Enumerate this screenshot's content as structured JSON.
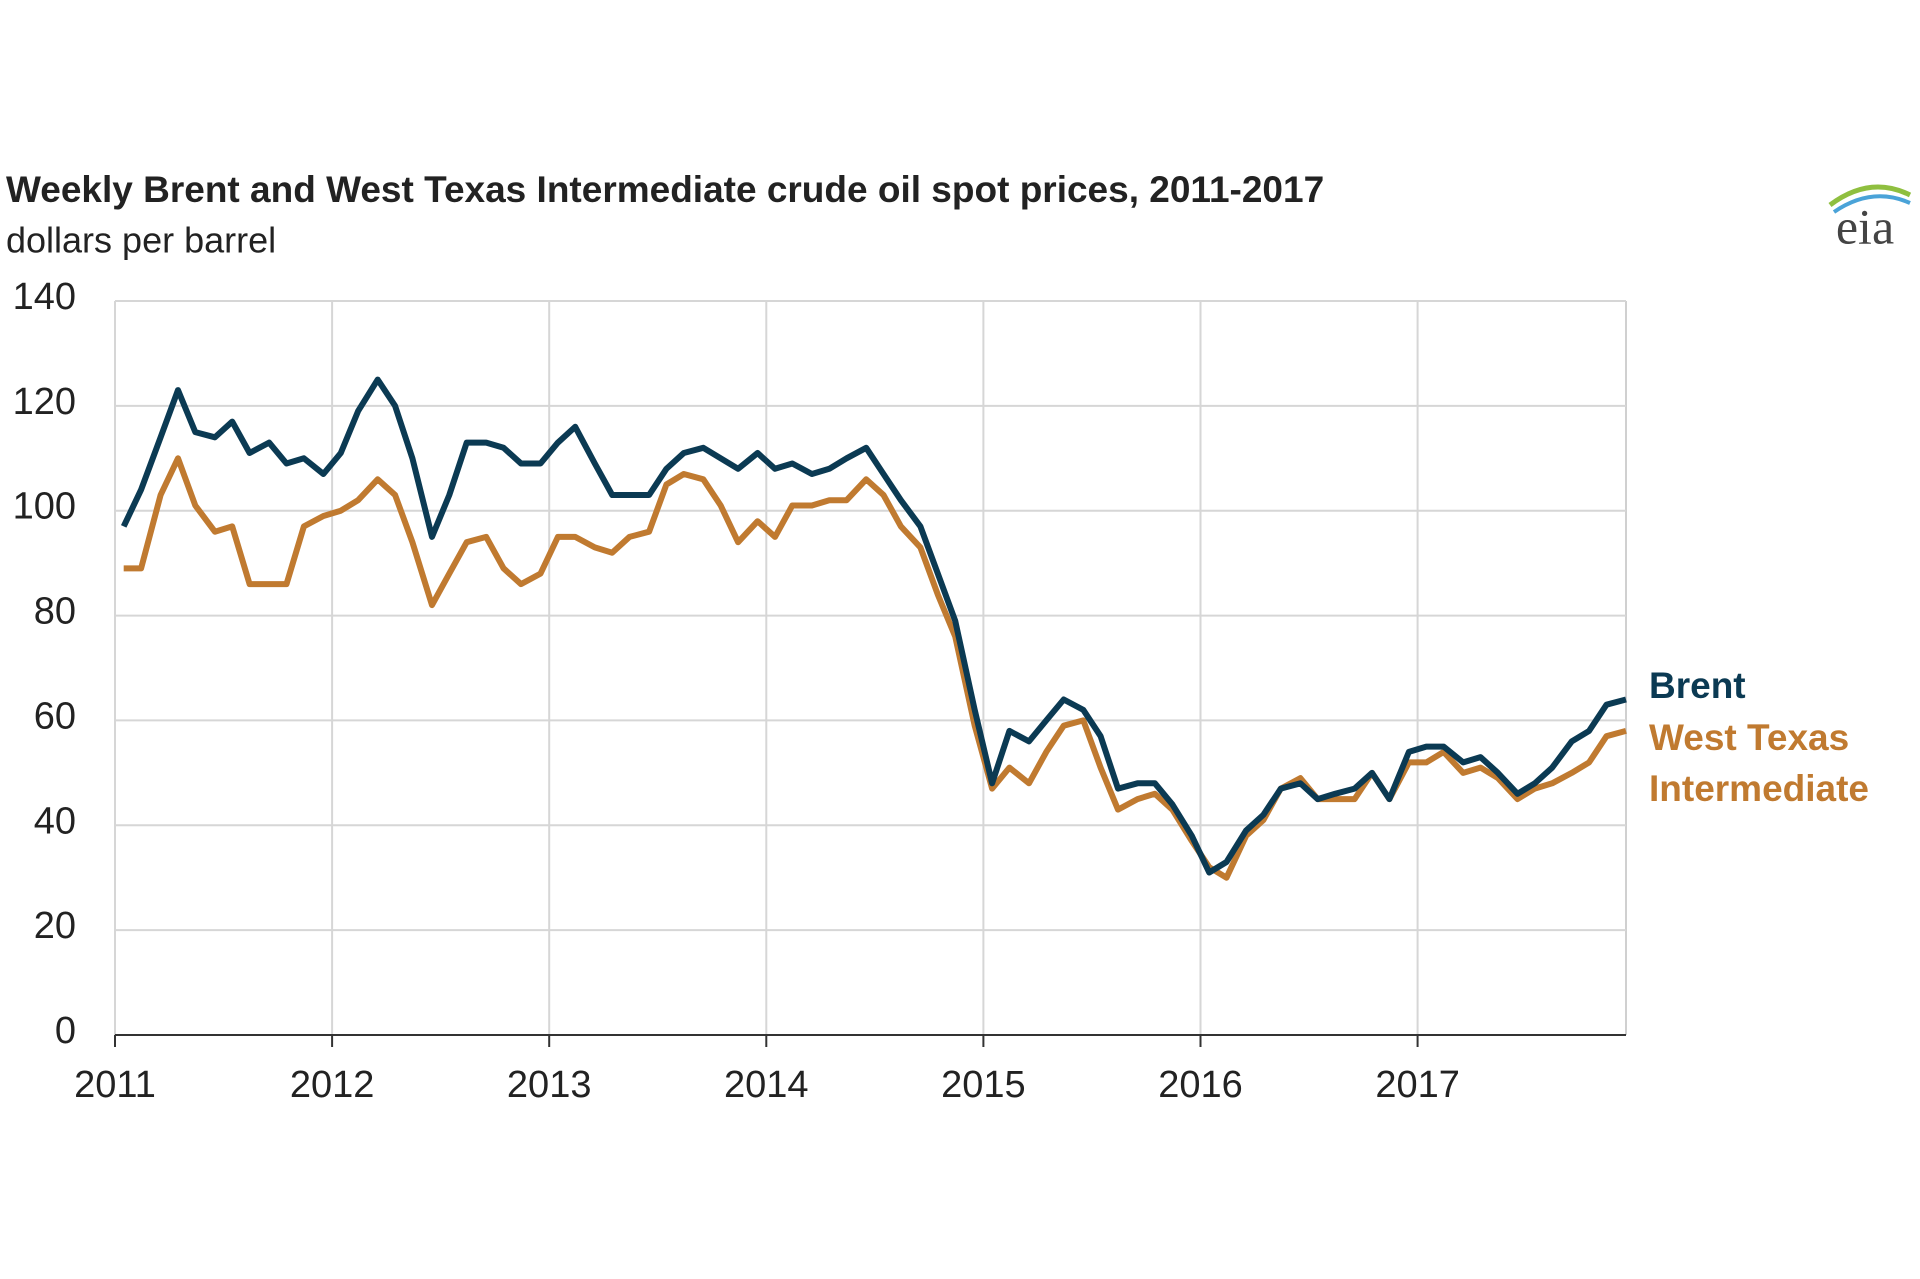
{
  "chart_data": {
    "type": "line",
    "title": "Weekly Brent and West Texas Intermediate crude oil spot prices, 2011-2017",
    "subtitle": "dollars per barrel",
    "logo": "eia",
    "x": [
      2011.04,
      2011.12,
      2011.21,
      2011.29,
      2011.37,
      2011.46,
      2011.54,
      2011.62,
      2011.71,
      2011.79,
      2011.87,
      2011.96,
      2012.04,
      2012.12,
      2012.21,
      2012.29,
      2012.37,
      2012.46,
      2012.54,
      2012.62,
      2012.71,
      2012.79,
      2012.87,
      2012.96,
      2013.04,
      2013.12,
      2013.21,
      2013.29,
      2013.37,
      2013.46,
      2013.54,
      2013.62,
      2013.71,
      2013.79,
      2013.87,
      2013.96,
      2014.04,
      2014.12,
      2014.21,
      2014.29,
      2014.37,
      2014.46,
      2014.54,
      2014.62,
      2014.71,
      2014.79,
      2014.87,
      2014.96,
      2015.04,
      2015.12,
      2015.21,
      2015.29,
      2015.37,
      2015.46,
      2015.54,
      2015.62,
      2015.71,
      2015.79,
      2015.87,
      2015.96,
      2016.04,
      2016.12,
      2016.21,
      2016.29,
      2016.37,
      2016.46,
      2016.54,
      2016.62,
      2016.71,
      2016.79,
      2016.87,
      2016.96,
      2017.04,
      2017.12,
      2017.21,
      2017.29,
      2017.37,
      2017.46,
      2017.54,
      2017.62,
      2017.71,
      2017.79,
      2017.87,
      2017.96
    ],
    "series": [
      {
        "name": "Brent",
        "color": "#0b3a53",
        "values": [
          97,
          104,
          114,
          123,
          115,
          114,
          117,
          111,
          113,
          109,
          110,
          107,
          111,
          119,
          125,
          120,
          110,
          95,
          103,
          113,
          113,
          112,
          109,
          109,
          113,
          116,
          109,
          103,
          103,
          103,
          108,
          111,
          112,
          110,
          108,
          111,
          108,
          109,
          107,
          108,
          110,
          112,
          107,
          102,
          97,
          88,
          79,
          62,
          48,
          58,
          56,
          60,
          64,
          62,
          57,
          47,
          48,
          48,
          44,
          38,
          31,
          33,
          39,
          42,
          47,
          48,
          45,
          46,
          47,
          50,
          45,
          54,
          55,
          55,
          52,
          53,
          50,
          46,
          48,
          51,
          56,
          58,
          63,
          64
        ]
      },
      {
        "name": "West Texas Intermediate",
        "color": "#c07a30",
        "values": [
          89,
          89,
          103,
          110,
          101,
          96,
          97,
          86,
          86,
          86,
          97,
          99,
          100,
          102,
          106,
          103,
          94,
          82,
          88,
          94,
          95,
          89,
          86,
          88,
          95,
          95,
          93,
          92,
          95,
          96,
          105,
          107,
          106,
          101,
          94,
          98,
          95,
          101,
          101,
          102,
          102,
          106,
          103,
          97,
          93,
          84,
          76,
          59,
          47,
          51,
          48,
          54,
          59,
          60,
          51,
          43,
          45,
          46,
          43,
          37,
          32,
          30,
          38,
          41,
          47,
          49,
          45,
          45,
          45,
          50,
          45,
          52,
          52,
          54,
          50,
          51,
          49,
          45,
          47,
          48,
          50,
          52,
          57,
          58
        ]
      }
    ],
    "xlim": [
      2011,
      2017.96
    ],
    "xticks": [
      2011,
      2012,
      2013,
      2014,
      2015,
      2016,
      2017
    ],
    "ylim": [
      0,
      140
    ],
    "yticks": [
      0,
      20,
      40,
      60,
      80,
      100,
      120,
      140
    ],
    "grid": true
  }
}
